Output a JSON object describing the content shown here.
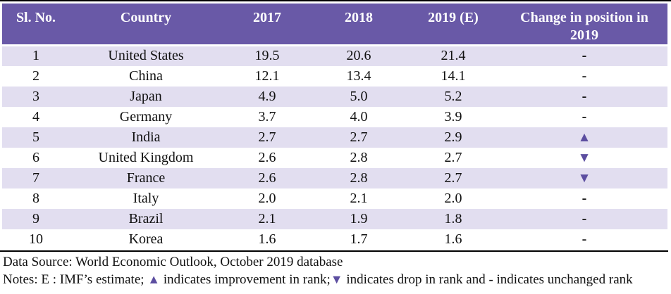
{
  "colors": {
    "header_bg": "#6959A7",
    "row_alt_bg": "#E2DEF0",
    "triangle": "#5C4EA0"
  },
  "table": {
    "columns": [
      "Sl. No.",
      "Country",
      "2017",
      "2018",
      "2019 (E)",
      "Change in position in 2019"
    ],
    "rows": [
      {
        "sl_no": "1",
        "country": "United States",
        "v2017": "19.5",
        "v2018": "20.6",
        "v2019": "21.4",
        "change": "-"
      },
      {
        "sl_no": "2",
        "country": "China",
        "v2017": "12.1",
        "v2018": "13.4",
        "v2019": "14.1",
        "change": "-"
      },
      {
        "sl_no": "3",
        "country": "Japan",
        "v2017": "4.9",
        "v2018": "5.0",
        "v2019": "5.2",
        "change": "-"
      },
      {
        "sl_no": "4",
        "country": "Germany",
        "v2017": "3.7",
        "v2018": "4.0",
        "v2019": "3.9",
        "change": "-"
      },
      {
        "sl_no": "5",
        "country": "India",
        "v2017": "2.7",
        "v2018": "2.7",
        "v2019": "2.9",
        "change": "▲"
      },
      {
        "sl_no": "6",
        "country": "United Kingdom",
        "v2017": "2.6",
        "v2018": "2.8",
        "v2019": "2.7",
        "change": "▼"
      },
      {
        "sl_no": "7",
        "country": "France",
        "v2017": "2.6",
        "v2018": "2.8",
        "v2019": "2.7",
        "change": "▼"
      },
      {
        "sl_no": "8",
        "country": "Italy",
        "v2017": "2.0",
        "v2018": "2.1",
        "v2019": "2.0",
        "change": "-"
      },
      {
        "sl_no": "9",
        "country": "Brazil",
        "v2017": "2.1",
        "v2018": "1.9",
        "v2019": "1.8",
        "change": "-"
      },
      {
        "sl_no": "10",
        "country": "Korea",
        "v2017": "1.6",
        "v2018": "1.7",
        "v2019": "1.6",
        "change": "-"
      }
    ]
  },
  "footer": {
    "source": "Data Source: World Economic Outlook, October 2019 database",
    "notes": {
      "prefix": "Notes: E : IMF’s estimate; ",
      "up_symbol": "▲",
      "up_text": " indicates improvement in rank;",
      "down_symbol": "▼",
      "down_text": " indicates drop in rank and ",
      "dash_symbol": "-",
      "dash_text": " indicates unchanged rank"
    }
  }
}
